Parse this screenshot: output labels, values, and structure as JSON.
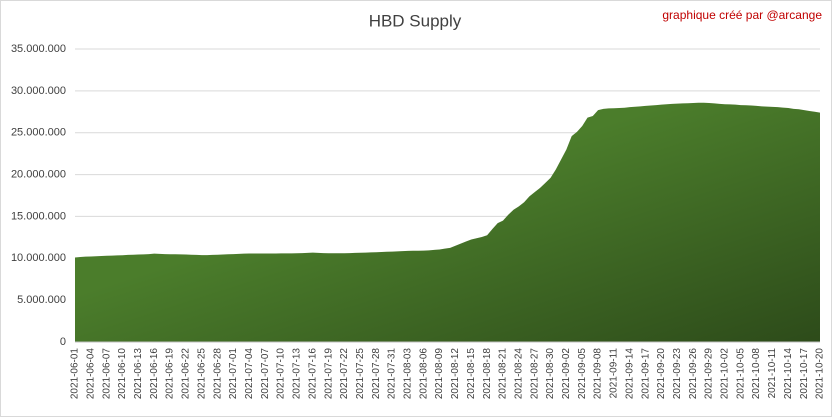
{
  "chart_data": {
    "type": "area",
    "title": "HBD Supply",
    "annotation": "graphique créé par @arcange",
    "color": "#4b7d2b",
    "grid": true,
    "ylim": [
      0,
      35000000
    ],
    "yticks": [
      {
        "value": 0,
        "label": "0"
      },
      {
        "value": 5000000,
        "label": "5.000.000"
      },
      {
        "value": 10000000,
        "label": "10.000.000"
      },
      {
        "value": 15000000,
        "label": "15.000.000"
      },
      {
        "value": 20000000,
        "label": "20.000.000"
      },
      {
        "value": 25000000,
        "label": "25.000.000"
      },
      {
        "value": 30000000,
        "label": "30.000.000"
      },
      {
        "value": 35000000,
        "label": "35.000.000"
      }
    ],
    "categories": [
      "2021-06-01",
      null,
      null,
      "2021-06-04",
      null,
      null,
      "2021-06-07",
      null,
      null,
      "2021-06-10",
      null,
      null,
      "2021-06-13",
      null,
      null,
      "2021-06-16",
      null,
      null,
      "2021-06-19",
      null,
      null,
      "2021-06-22",
      null,
      null,
      "2021-06-25",
      null,
      null,
      "2021-06-28",
      null,
      null,
      "2021-07-01",
      null,
      null,
      "2021-07-04",
      null,
      null,
      "2021-07-07",
      null,
      null,
      "2021-07-10",
      null,
      null,
      "2021-07-13",
      null,
      null,
      "2021-07-16",
      null,
      null,
      "2021-07-19",
      null,
      null,
      "2021-07-22",
      null,
      null,
      "2021-07-25",
      null,
      null,
      "2021-07-28",
      null,
      null,
      "2021-07-31",
      null,
      null,
      "2021-08-03",
      null,
      null,
      "2021-08-06",
      null,
      null,
      "2021-08-09",
      null,
      null,
      "2021-08-12",
      null,
      null,
      "2021-08-15",
      null,
      null,
      "2021-08-18",
      null,
      null,
      "2021-08-21",
      null,
      null,
      "2021-08-24",
      null,
      null,
      "2021-08-27",
      null,
      null,
      "2021-08-30",
      null,
      null,
      "2021-09-02",
      null,
      null,
      "2021-09-05",
      null,
      null,
      "2021-09-08",
      null,
      null,
      "2021-09-11",
      null,
      null,
      "2021-09-14",
      null,
      null,
      "2021-09-17",
      null,
      null,
      "2021-09-20",
      null,
      null,
      "2021-09-23",
      null,
      null,
      "2021-09-26",
      null,
      null,
      "2021-09-29",
      null,
      null,
      "2021-10-02",
      null,
      null,
      "2021-10-05",
      null,
      null,
      "2021-10-08",
      null,
      null,
      "2021-10-11",
      null,
      null,
      "2021-10-14",
      null,
      null,
      "2021-10-17",
      null,
      null,
      "2021-10-20"
    ],
    "values": [
      10100000,
      10150000,
      10200000,
      10220000,
      10250000,
      10270000,
      10300000,
      10320000,
      10350000,
      10370000,
      10400000,
      10420000,
      10450000,
      10470000,
      10500000,
      10550000,
      10520000,
      10500000,
      10480000,
      10480000,
      10470000,
      10450000,
      10420000,
      10400000,
      10380000,
      10380000,
      10400000,
      10420000,
      10450000,
      10480000,
      10500000,
      10520000,
      10550000,
      10570000,
      10570000,
      10570000,
      10570000,
      10570000,
      10570000,
      10580000,
      10580000,
      10580000,
      10600000,
      10620000,
      10650000,
      10680000,
      10650000,
      10620000,
      10600000,
      10600000,
      10600000,
      10600000,
      10620000,
      10640000,
      10660000,
      10680000,
      10700000,
      10720000,
      10750000,
      10780000,
      10800000,
      10820000,
      10850000,
      10880000,
      10900000,
      10900000,
      10920000,
      10950000,
      11000000,
      11050000,
      11150000,
      11250000,
      11500000,
      11750000,
      12000000,
      12250000,
      12400000,
      12550000,
      12750000,
      13500000,
      14200000,
      14500000,
      15200000,
      15800000,
      16200000,
      16700000,
      17400000,
      17900000,
      18400000,
      19000000,
      19600000,
      20600000,
      21800000,
      23000000,
      24600000,
      25100000,
      25800000,
      26800000,
      27000000,
      27700000,
      27850000,
      27900000,
      27920000,
      27950000,
      27980000,
      28050000,
      28100000,
      28150000,
      28200000,
      28250000,
      28300000,
      28350000,
      28400000,
      28450000,
      28480000,
      28500000,
      28520000,
      28550000,
      28580000,
      28580000,
      28550000,
      28500000,
      28450000,
      28400000,
      28380000,
      28350000,
      28300000,
      28280000,
      28250000,
      28200000,
      28150000,
      28120000,
      28080000,
      28050000,
      28000000,
      27950000,
      27850000,
      27800000,
      27700000,
      27600000,
      27500000,
      27400000
    ]
  }
}
